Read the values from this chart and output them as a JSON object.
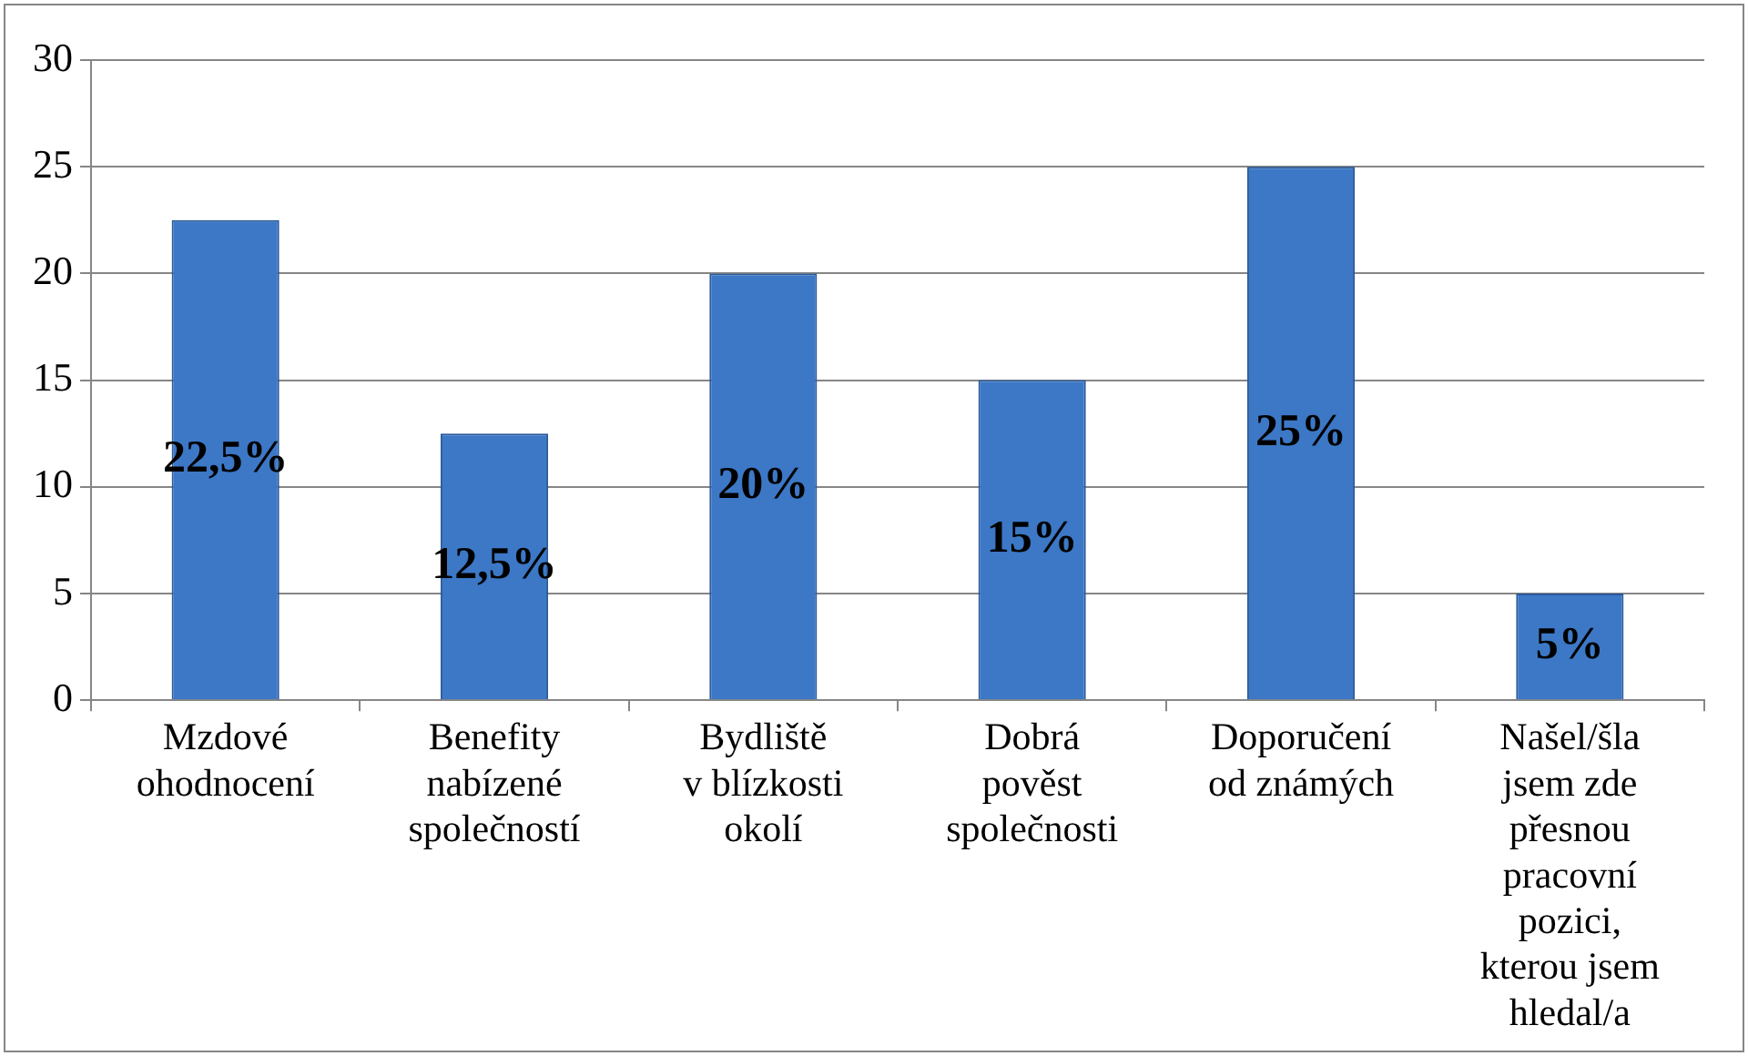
{
  "chart_data": {
    "type": "bar",
    "categories": [
      "Mzdové ohodnocení",
      "Benefity nabízené společností",
      "Bydliště v blízkosti okolí",
      "Dobrá pověst společnosti",
      "Doporučení od známých",
      "Našel/šla jsem zde přesnou pracovní pozici, kterou jsem hledal/a"
    ],
    "values": [
      22.5,
      12.5,
      20,
      15,
      25,
      5
    ],
    "value_labels": [
      "22,5%",
      "12,5%",
      "20%",
      "15%",
      "25%",
      "5%"
    ],
    "color": "#3c78c6",
    "ylim": [
      0,
      30
    ],
    "yticks": [
      0,
      5,
      10,
      15,
      20,
      25,
      30
    ],
    "grid": "y",
    "legend": false
  }
}
